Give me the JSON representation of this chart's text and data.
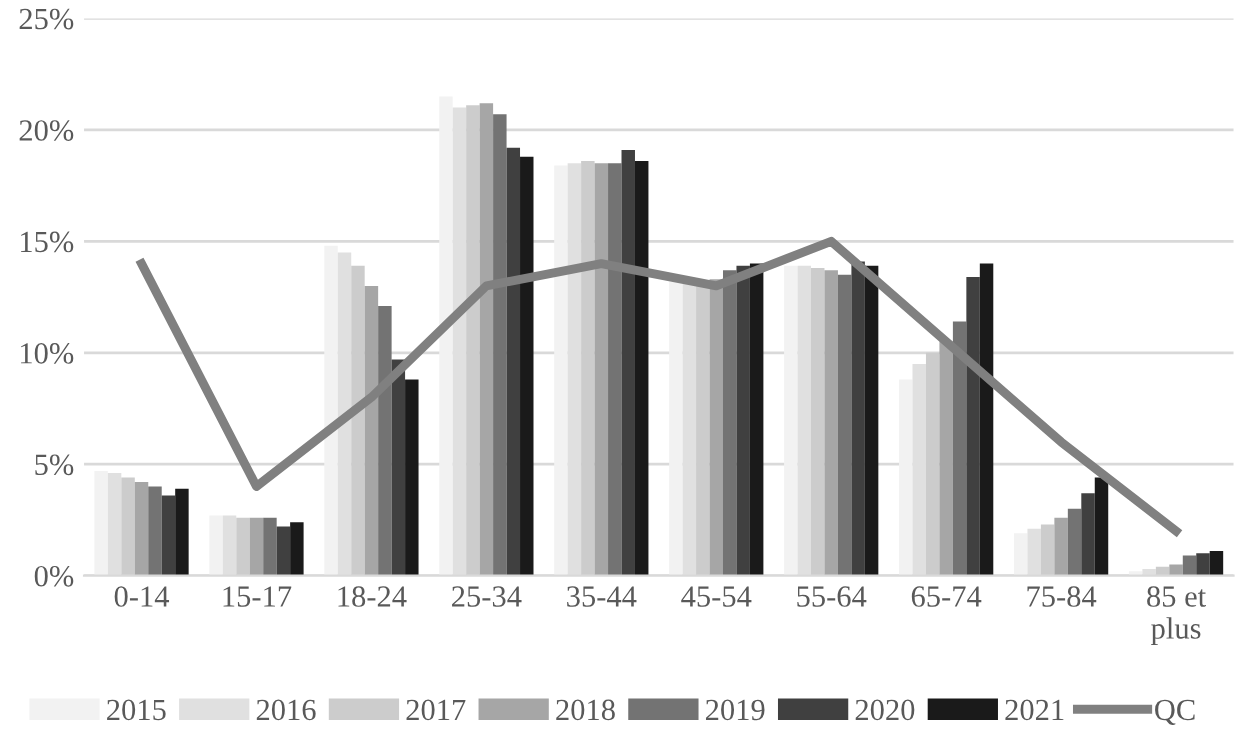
{
  "chart_data": {
    "type": "bar",
    "categories": [
      "0-14",
      "15-17",
      "18-24",
      "25-34",
      "35-44",
      "45-54",
      "55-64",
      "65-74",
      "75-84",
      "85 et plus"
    ],
    "series": [
      {
        "name": "2015",
        "color": "#f2f2f2",
        "values": [
          4.7,
          2.7,
          14.8,
          21.5,
          18.4,
          13.2,
          13.9,
          8.8,
          1.9,
          0.2
        ]
      },
      {
        "name": "2016",
        "color": "#e0e0e0",
        "values": [
          4.6,
          2.7,
          14.5,
          21.0,
          18.5,
          13.2,
          13.9,
          9.5,
          2.1,
          0.3
        ]
      },
      {
        "name": "2017",
        "color": "#cccccc",
        "values": [
          4.4,
          2.6,
          13.9,
          21.1,
          18.6,
          13.2,
          13.8,
          10.0,
          2.3,
          0.4
        ]
      },
      {
        "name": "2018",
        "color": "#a6a6a6",
        "values": [
          4.2,
          2.6,
          13.0,
          21.2,
          18.5,
          13.3,
          13.7,
          10.5,
          2.6,
          0.5
        ]
      },
      {
        "name": "2019",
        "color": "#737373",
        "values": [
          4.0,
          2.6,
          12.1,
          20.7,
          18.5,
          13.7,
          13.5,
          11.4,
          3.0,
          0.9
        ]
      },
      {
        "name": "2020",
        "color": "#404040",
        "values": [
          3.6,
          2.2,
          9.7,
          19.2,
          19.1,
          13.9,
          14.1,
          13.4,
          3.7,
          1.0
        ]
      },
      {
        "name": "2021",
        "color": "#1a1a1a",
        "values": [
          3.9,
          2.4,
          8.8,
          18.8,
          18.6,
          14.0,
          13.9,
          14.0,
          4.4,
          1.1
        ]
      },
      {
        "name": "QC",
        "type": "line",
        "color": "#808080",
        "values": [
          14,
          4,
          8,
          13,
          14,
          13,
          15,
          10.5,
          6,
          2
        ]
      }
    ],
    "ylim": [
      0,
      25
    ],
    "yticks": [
      {
        "value": 0,
        "label": "0%"
      },
      {
        "value": 5,
        "label": "5%"
      },
      {
        "value": 10,
        "label": "10%"
      },
      {
        "value": 15,
        "label": "15%"
      },
      {
        "value": 20,
        "label": "20%"
      },
      {
        "value": 25,
        "label": "25%"
      }
    ],
    "grid": "y",
    "legend": "bottom",
    "marker": "none",
    "line_style": "solid"
  }
}
